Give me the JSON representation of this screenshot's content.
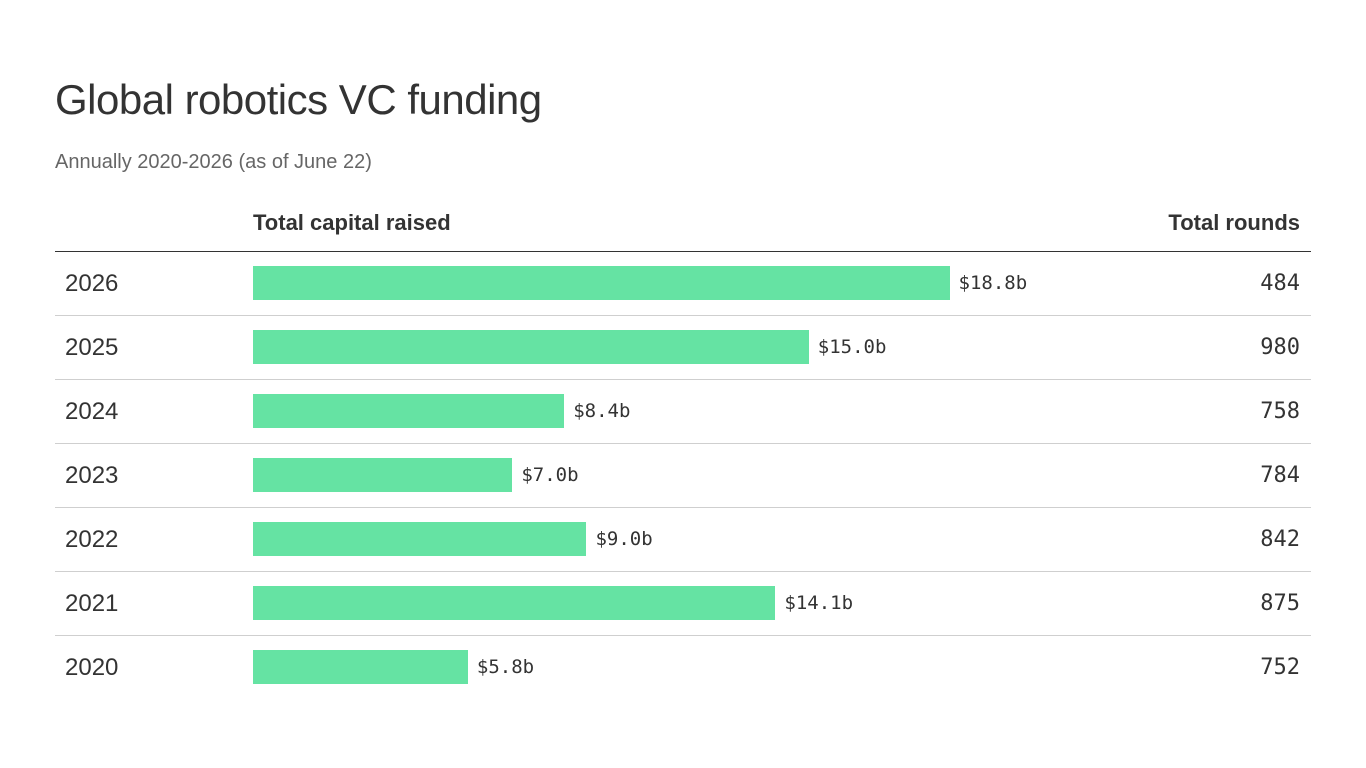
{
  "colors": {
    "bar": "#65e3a3",
    "text": "#333333",
    "subtle_text": "#666666",
    "rule": "#cfcfcf"
  },
  "chart_data": {
    "type": "bar",
    "orientation": "horizontal",
    "title": "Global robotics VC funding",
    "subtitle": "Annually 2020-2026 (as of June 22)",
    "column_headers": {
      "capital": "Total capital raised",
      "rounds": "Total rounds"
    },
    "value_unit": "billion USD",
    "xlim": [
      0,
      22
    ],
    "grid": false,
    "legend": "none",
    "rows": [
      {
        "year": "2026",
        "capital": 18.8,
        "capital_label": "$18.8b",
        "rounds": "484"
      },
      {
        "year": "2025",
        "capital": 15.0,
        "capital_label": "$15.0b",
        "rounds": "980"
      },
      {
        "year": "2024",
        "capital": 8.4,
        "capital_label": "$8.4b",
        "rounds": "758"
      },
      {
        "year": "2023",
        "capital": 7.0,
        "capital_label": "$7.0b",
        "rounds": "784"
      },
      {
        "year": "2022",
        "capital": 9.0,
        "capital_label": "$9.0b",
        "rounds": "842"
      },
      {
        "year": "2021",
        "capital": 14.1,
        "capital_label": "$14.1b",
        "rounds": "875"
      },
      {
        "year": "2020",
        "capital": 5.8,
        "capital_label": "$5.8b",
        "rounds": "752"
      }
    ]
  }
}
